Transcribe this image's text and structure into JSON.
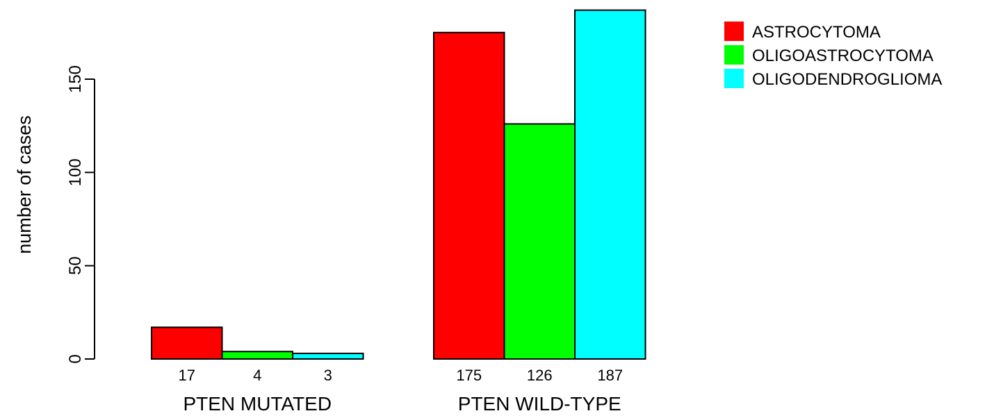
{
  "chart_data": {
    "type": "bar",
    "ylabel": "number of cases",
    "ylim": [
      0,
      190
    ],
    "yticks": [
      0,
      50,
      100,
      150
    ],
    "groups": [
      {
        "label": "PTEN MUTATED",
        "values": [
          17,
          4,
          3
        ],
        "value_labels": [
          "17",
          "4",
          "3"
        ]
      },
      {
        "label": "PTEN WILD-TYPE",
        "values": [
          175,
          126,
          187
        ],
        "value_labels": [
          "175",
          "126",
          "187"
        ]
      }
    ],
    "series": [
      {
        "name": "ASTROCYTOMA",
        "color": "#ff0000"
      },
      {
        "name": "OLIGOASTROCYTOMA",
        "color": "#00ff00"
      },
      {
        "name": "OLIGODENDROGLIOMA",
        "color": "#00ffff"
      }
    ],
    "legend_position": "top-right",
    "grid": false
  }
}
